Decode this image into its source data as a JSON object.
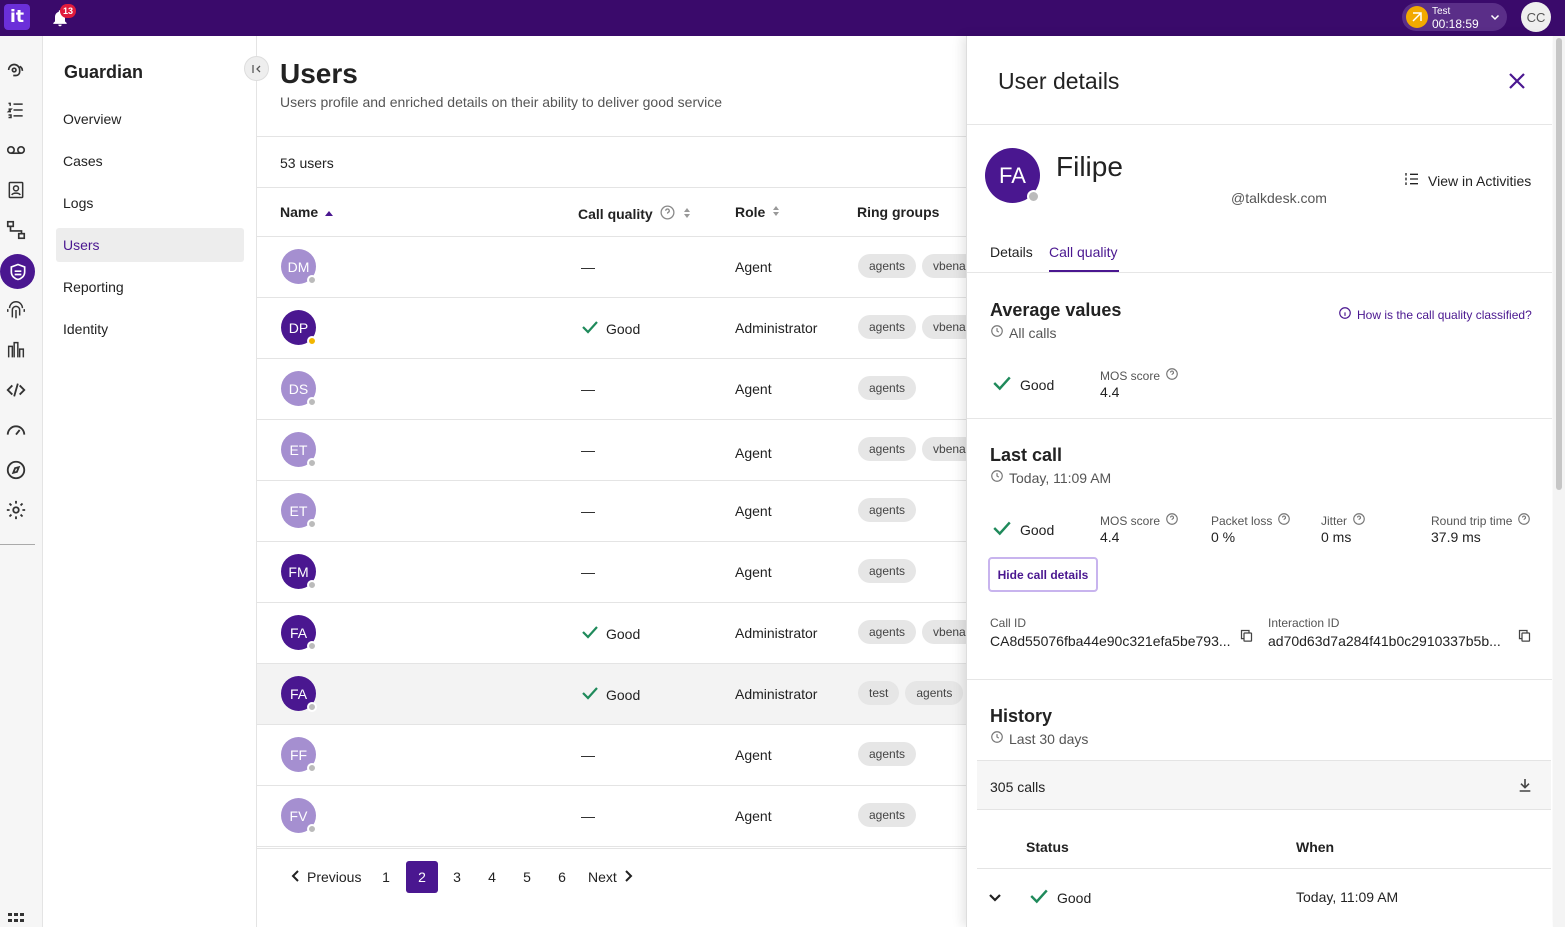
{
  "topbar": {
    "logo": "it",
    "notification_count": "13",
    "timer": {
      "label": "Test",
      "time": "00:18:59"
    },
    "user_initials": "CC"
  },
  "rail": {
    "icons": [
      "conversations-icon",
      "list-icon",
      "voicemail-icon",
      "contacts-icon",
      "flows-icon",
      "guardian-shield-icon",
      "fingerprint-icon",
      "analytics-icon",
      "code-icon",
      "speedometer-icon",
      "compass-icon",
      "settings-icon",
      "apps-grid-icon"
    ]
  },
  "sidebar": {
    "title": "Guardian",
    "items": [
      {
        "label": "Overview"
      },
      {
        "label": "Cases"
      },
      {
        "label": "Logs"
      },
      {
        "label": "Users"
      },
      {
        "label": "Reporting"
      },
      {
        "label": "Identity"
      }
    ]
  },
  "main": {
    "title": "Users",
    "subtitle": "Users profile and enriched details on their ability to deliver good service",
    "count": "53 users",
    "columns": {
      "name": "Name",
      "call_quality": "Call quality",
      "role": "Role",
      "ring_groups": "Ring groups"
    },
    "rows": [
      {
        "initials": "DM",
        "call_quality": "—",
        "role": "Agent",
        "groups": [
          "agents",
          "vbena"
        ]
      },
      {
        "initials": "DP",
        "call_quality": "Good",
        "role": "Administrator",
        "groups": [
          "agents",
          "vbena"
        ]
      },
      {
        "initials": "DS",
        "call_quality": "—",
        "role": "Agent",
        "groups": [
          "agents"
        ]
      },
      {
        "initials": "ET",
        "call_quality": "—",
        "role": "Agent",
        "groups": [
          "agents",
          "vbena"
        ]
      },
      {
        "initials": "ET",
        "call_quality": "—",
        "role": "Agent",
        "groups": [
          "agents"
        ]
      },
      {
        "initials": "FM",
        "call_quality": "—",
        "role": "Agent",
        "groups": [
          "agents"
        ]
      },
      {
        "initials": "FA",
        "call_quality": "Good",
        "role": "Administrator",
        "groups": [
          "agents",
          "vbena"
        ]
      },
      {
        "initials": "FA",
        "call_quality": "Good",
        "role": "Administrator",
        "groups": [
          "test",
          "agents"
        ]
      },
      {
        "initials": "FF",
        "call_quality": "—",
        "role": "Agent",
        "groups": [
          "agents"
        ]
      },
      {
        "initials": "FV",
        "call_quality": "—",
        "role": "Agent",
        "groups": [
          "agents"
        ]
      }
    ],
    "pagination": {
      "previous": "Previous",
      "pages": [
        "1",
        "2",
        "3",
        "4",
        "5",
        "6"
      ],
      "current": "2",
      "next": "Next"
    }
  },
  "panel": {
    "title": "User details",
    "user": {
      "initials": "FA",
      "name": "Filipe",
      "email": "@talkdesk.com"
    },
    "view_activities": "View in Activities",
    "tabs": [
      "Details",
      "Call quality"
    ],
    "active_tab": "Call quality",
    "average": {
      "title": "Average values",
      "scope": "All calls",
      "classify_link": "How is the call quality classified?",
      "status": "Good",
      "mos_label": "MOS score",
      "mos_value": "4.4"
    },
    "last_call": {
      "title": "Last call",
      "when": "Today, 11:09 AM",
      "status": "Good",
      "metrics": [
        {
          "label": "MOS score",
          "value": "4.4"
        },
        {
          "label": "Packet loss",
          "value": "0 %"
        },
        {
          "label": "Jitter",
          "value": "0 ms"
        },
        {
          "label": "Round trip time",
          "value": "37.9 ms"
        }
      ],
      "hide_button": "Hide call details",
      "call_id_label": "Call ID",
      "call_id": "CA8d55076fba44e90c321efa5be793...",
      "interaction_id_label": "Interaction ID",
      "interaction_id": "ad70d63d7a284f41b0c2910337b5b..."
    },
    "history": {
      "title": "History",
      "range": "Last 30 days",
      "calls": "305 calls",
      "columns": {
        "status": "Status",
        "when": "When"
      },
      "rows": [
        {
          "status": "Good",
          "when": "Today, 11:09 AM"
        }
      ]
    }
  },
  "colors": {
    "brand": "#4a1790",
    "topbar": "#3a0a6b",
    "good_check": "#1f8a5b"
  }
}
